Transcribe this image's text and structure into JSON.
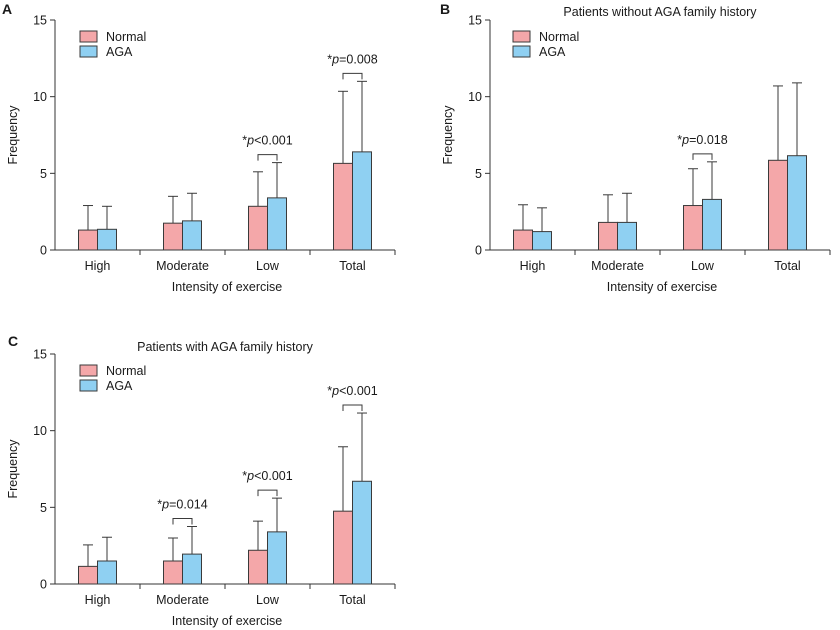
{
  "colors": {
    "normal": "#f4a7a9",
    "aga": "#8fd0f2",
    "stroke": "#3a3a3a"
  },
  "chart_data": [
    {
      "type": "bar",
      "panel_label": "A",
      "title": "",
      "xlabel": "Intensity of exercise",
      "ylabel": "Frequency",
      "ylim": [
        0,
        15
      ],
      "yticks": [
        "0",
        "5",
        "10",
        "15"
      ],
      "categories": [
        "High",
        "Moderate",
        "Low",
        "Total"
      ],
      "legend_position": "top-left",
      "series": [
        {
          "name": "Normal",
          "values": [
            1.3,
            1.75,
            2.85,
            5.65
          ],
          "errors": [
            1.6,
            1.75,
            2.25,
            4.7
          ]
        },
        {
          "name": "AGA",
          "values": [
            1.35,
            1.9,
            3.4,
            6.4
          ],
          "errors": [
            1.5,
            1.8,
            2.3,
            4.6
          ]
        }
      ],
      "annotations": [
        {
          "category": "Low",
          "text_star": "*",
          "text_p": "p",
          "text_rest": "<0.001"
        },
        {
          "category": "Total",
          "text_star": "*",
          "text_p": "p",
          "text_rest": "=0.008"
        }
      ]
    },
    {
      "type": "bar",
      "panel_label": "B",
      "title": "Patients without AGA family history",
      "xlabel": "Intensity of exercise",
      "ylabel": "Frequency",
      "ylim": [
        0,
        15
      ],
      "yticks": [
        "0",
        "5",
        "10",
        "15"
      ],
      "categories": [
        "High",
        "Moderate",
        "Low",
        "Total"
      ],
      "legend_position": "top-left",
      "series": [
        {
          "name": "Normal",
          "values": [
            1.3,
            1.8,
            2.9,
            5.85
          ],
          "errors": [
            1.65,
            1.8,
            2.4,
            4.85
          ]
        },
        {
          "name": "AGA",
          "values": [
            1.2,
            1.8,
            3.3,
            6.15
          ],
          "errors": [
            1.55,
            1.9,
            2.45,
            4.75
          ]
        }
      ],
      "annotations": [
        {
          "category": "Low",
          "text_star": "*",
          "text_p": "p",
          "text_rest": "=0.018"
        }
      ]
    },
    {
      "type": "bar",
      "panel_label": "C",
      "title": "Patients with AGA family history",
      "xlabel": "Intensity of exercise",
      "ylabel": "Frequency",
      "ylim": [
        0,
        15
      ],
      "yticks": [
        "0",
        "5",
        "10",
        "15"
      ],
      "categories": [
        "High",
        "Moderate",
        "Low",
        "Total"
      ],
      "legend_position": "top-left",
      "series": [
        {
          "name": "Normal",
          "values": [
            1.15,
            1.5,
            2.2,
            4.75
          ],
          "errors": [
            1.4,
            1.5,
            1.9,
            4.2
          ]
        },
        {
          "name": "AGA",
          "values": [
            1.5,
            1.95,
            3.4,
            6.7
          ],
          "errors": [
            1.55,
            1.8,
            2.2,
            4.45
          ]
        }
      ],
      "annotations": [
        {
          "category": "Moderate",
          "text_star": "*",
          "text_p": "p",
          "text_rest": "=0.014"
        },
        {
          "category": "Low",
          "text_star": "*",
          "text_p": "p",
          "text_rest": "<0.001"
        },
        {
          "category": "Total",
          "text_star": "*",
          "text_p": "p",
          "text_rest": "<0.001"
        }
      ]
    }
  ]
}
